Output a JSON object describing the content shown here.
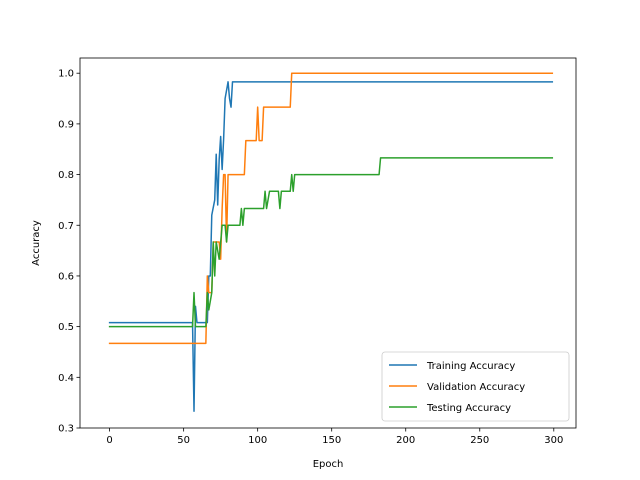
{
  "chart_data": {
    "type": "line",
    "title": "",
    "xlabel": "Epoch",
    "ylabel": "Accuracy",
    "xlim": [
      -20,
      315
    ],
    "ylim": [
      0.3,
      1.03
    ],
    "xticks": [
      0,
      50,
      100,
      150,
      200,
      250,
      300
    ],
    "yticks": [
      0.3,
      0.4,
      0.5,
      0.6,
      0.7,
      0.8,
      0.9,
      1.0
    ],
    "ytick_labels": [
      "0.3",
      "0.4",
      "0.5",
      "0.6",
      "0.7",
      "0.8",
      "0.9",
      "1.0"
    ],
    "grid": false,
    "legend_position": "lower-right",
    "series": [
      {
        "name": "Training Accuracy",
        "color": "#1f77b4",
        "points": [
          [
            0,
            0.508
          ],
          [
            56,
            0.508
          ],
          [
            57,
            0.333
          ],
          [
            58,
            0.54
          ],
          [
            59,
            0.508
          ],
          [
            66,
            0.508
          ],
          [
            67,
            0.6
          ],
          [
            68,
            0.6
          ],
          [
            69,
            0.72
          ],
          [
            71,
            0.75
          ],
          [
            72,
            0.84
          ],
          [
            73,
            0.74
          ],
          [
            74,
            0.83
          ],
          [
            75,
            0.875
          ],
          [
            76,
            0.81
          ],
          [
            77,
            0.87
          ],
          [
            78,
            0.95
          ],
          [
            80,
            0.983
          ],
          [
            81,
            0.95
          ],
          [
            82,
            0.933
          ],
          [
            83,
            0.983
          ],
          [
            299,
            0.983
          ]
        ]
      },
      {
        "name": "Validation Accuracy",
        "color": "#ff7f0e",
        "points": [
          [
            0,
            0.467
          ],
          [
            65,
            0.467
          ],
          [
            66,
            0.6
          ],
          [
            67,
            0.567
          ],
          [
            69,
            0.567
          ],
          [
            70,
            0.667
          ],
          [
            74,
            0.667
          ],
          [
            75,
            0.633
          ],
          [
            76,
            0.733
          ],
          [
            77,
            0.8
          ],
          [
            78,
            0.8
          ],
          [
            79,
            0.667
          ],
          [
            80,
            0.8
          ],
          [
            91,
            0.8
          ],
          [
            92,
            0.867
          ],
          [
            99,
            0.867
          ],
          [
            100,
            0.933
          ],
          [
            101,
            0.867
          ],
          [
            103,
            0.867
          ],
          [
            104,
            0.933
          ],
          [
            122,
            0.933
          ],
          [
            123,
            1.0
          ],
          [
            299,
            1.0
          ]
        ]
      },
      {
        "name": "Testing Accuracy",
        "color": "#2ca02c",
        "points": [
          [
            0,
            0.5
          ],
          [
            56,
            0.5
          ],
          [
            57,
            0.567
          ],
          [
            58,
            0.5
          ],
          [
            59,
            0.5
          ],
          [
            65,
            0.5
          ],
          [
            66,
            0.567
          ],
          [
            67,
            0.533
          ],
          [
            69,
            0.567
          ],
          [
            70,
            0.667
          ],
          [
            71,
            0.6
          ],
          [
            72,
            0.667
          ],
          [
            74,
            0.633
          ],
          [
            76,
            0.7
          ],
          [
            78,
            0.7
          ],
          [
            79,
            0.667
          ],
          [
            80,
            0.7
          ],
          [
            88,
            0.7
          ],
          [
            89,
            0.733
          ],
          [
            90,
            0.7
          ],
          [
            91,
            0.733
          ],
          [
            104,
            0.733
          ],
          [
            105,
            0.767
          ],
          [
            106,
            0.733
          ],
          [
            108,
            0.767
          ],
          [
            114,
            0.767
          ],
          [
            115,
            0.733
          ],
          [
            116,
            0.767
          ],
          [
            122,
            0.767
          ],
          [
            123,
            0.8
          ],
          [
            124,
            0.767
          ],
          [
            125,
            0.8
          ],
          [
            182,
            0.8
          ],
          [
            183,
            0.833
          ],
          [
            299,
            0.833
          ]
        ]
      }
    ]
  }
}
